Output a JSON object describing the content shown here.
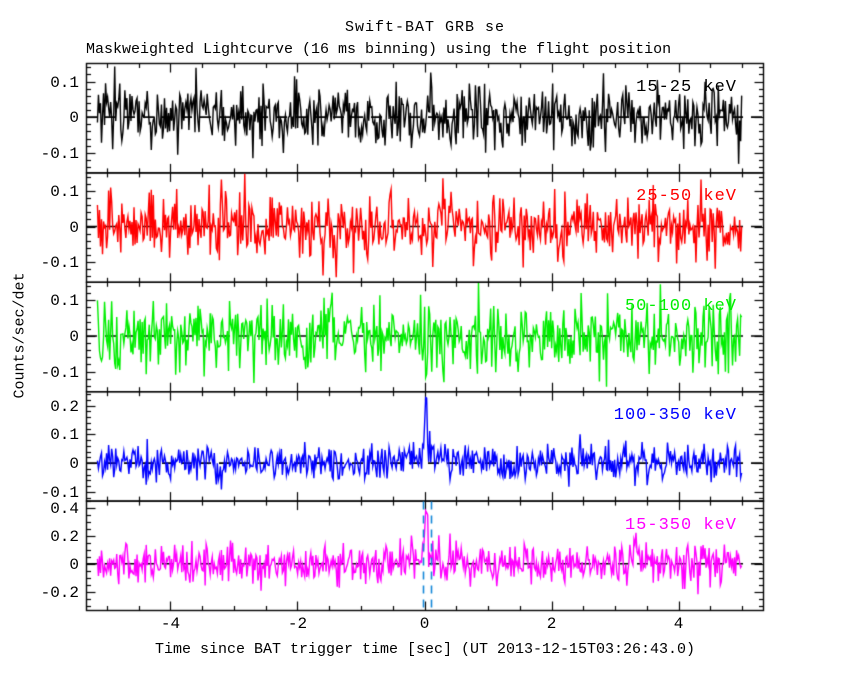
{
  "header": {
    "title": "Swift-BAT GRB se",
    "subtitle": "Maskweighted Lightcurve (16 ms binning) using the flight position"
  },
  "chart_data": {
    "type": "line",
    "title": "Swift-BAT GRB se",
    "subtitle": "Maskweighted Lightcurve (16 ms binning) using the flight position",
    "xlabel": "Time since BAT trigger time [sec] (UT 2013-12-15T03:26:43.0)",
    "ylabel": "Counts/sec/det",
    "x_range": [
      -5.33,
      5.33
    ],
    "data_range": [
      -5.15,
      5.0
    ],
    "x_ticks": [
      -4,
      -2,
      0,
      2,
      4
    ],
    "x_minor_step": 0.5,
    "bin_sec": 0.016,
    "grid": false,
    "zero_line_style": "dashed-black",
    "trigger_lines": {
      "times": [
        -0.02,
        0.1
      ],
      "color": "#1487d8",
      "style": "dashed",
      "panel_index": 4
    },
    "panels": [
      {
        "label": "15-25 keV",
        "color": "#000000",
        "ylim": [
          -0.155,
          0.152
        ],
        "yticks": [
          0.1,
          0,
          -0.1
        ],
        "ytick_minor": 0.02,
        "baseline": 0,
        "noise_rms": 0.045,
        "spikes": []
      },
      {
        "label": "25-50 keV",
        "color": "#ff0000",
        "ylim": [
          -0.155,
          0.152
        ],
        "yticks": [
          0.1,
          0,
          -0.1
        ],
        "ytick_minor": 0.02,
        "baseline": 0,
        "noise_rms": 0.046,
        "spikes": []
      },
      {
        "label": "50-100 keV",
        "color": "#00ee00",
        "ylim": [
          -0.155,
          0.152
        ],
        "yticks": [
          0.1,
          0,
          -0.1
        ],
        "ytick_minor": 0.02,
        "baseline": 0,
        "noise_rms": 0.05,
        "spikes": []
      },
      {
        "label": "100-350 keV",
        "color": "#0000ff",
        "ylim": [
          -0.13,
          0.25
        ],
        "yticks": [
          0.2,
          0.1,
          0,
          -0.1
        ],
        "ytick_minor": 0.02,
        "baseline": 0,
        "noise_rms": 0.031,
        "spikes": [
          {
            "t": 0.02,
            "amp": 0.2,
            "width": 0.018
          },
          {
            "t": 0.0,
            "amp": 0.035,
            "width": 0.3
          }
        ]
      },
      {
        "label": "15-350 keV",
        "color": "#ff00ff",
        "ylim": [
          -0.33,
          0.45
        ],
        "yticks": [
          0.4,
          0.2,
          0,
          -0.2
        ],
        "ytick_minor": 0.05,
        "baseline": 0,
        "noise_rms": 0.072,
        "spikes": [
          {
            "t": 0.03,
            "amp": 0.4,
            "width": 0.015
          },
          {
            "t": 3.33,
            "amp": 0.17,
            "width": 0.03
          },
          {
            "t": 0.0,
            "amp": 0.05,
            "width": 0.3
          }
        ]
      }
    ]
  }
}
